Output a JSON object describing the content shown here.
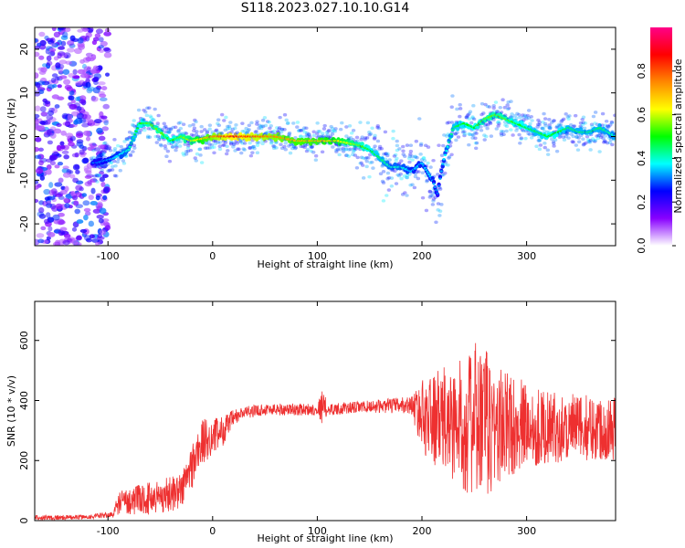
{
  "page": {
    "title": "S118.2023.027.10.10.G14"
  },
  "colors": {
    "snr_line": "#ee3030",
    "axis": "#000000",
    "background": "#ffffff"
  },
  "chart_data": [
    {
      "type": "heatmap",
      "xlabel": "Height of straight line (km)",
      "ylabel": "Frequency (Hz)",
      "xlim": [
        -170,
        385
      ],
      "ylim": [
        -25,
        25
      ],
      "x_ticks": [
        -100,
        0,
        100,
        200,
        300
      ],
      "y_ticks": [
        -20,
        -10,
        0,
        10,
        20
      ],
      "colorbar": {
        "label": "Normalized spectral amplitude",
        "range": [
          0.0,
          1.0
        ],
        "ticks": [
          0.0,
          0.2,
          0.4,
          0.6,
          0.8
        ],
        "tick_labels": [
          "0.0",
          "0.2",
          "0.4",
          "0.6",
          "0.8"
        ],
        "colormap": [
          "#ffffff",
          "#8800ff",
          "#0000ff",
          "#00ffff",
          "#00ff00",
          "#ffff00",
          "#ff8800",
          "#ff0000",
          "#ff0088"
        ]
      },
      "ridge": {
        "x": [
          -110,
          -95,
          -80,
          -70,
          -60,
          -50,
          -40,
          -30,
          -20,
          0,
          20,
          40,
          60,
          80,
          100,
          120,
          140,
          150,
          160,
          170,
          180,
          190,
          200,
          210,
          215,
          220,
          230,
          240,
          250,
          260,
          270,
          280,
          290,
          300,
          310,
          320,
          330,
          340,
          350,
          360,
          370,
          385
        ],
        "y": [
          -6,
          -5,
          -3,
          3,
          3,
          1,
          -1,
          0,
          -1,
          0,
          0,
          0,
          0,
          -1,
          -1,
          -1,
          -2,
          -3,
          -5,
          -7,
          -7,
          -8,
          -6,
          -10,
          -13,
          -6,
          2,
          3,
          2,
          4,
          5,
          4,
          3,
          2,
          1,
          0,
          1,
          2,
          1,
          1,
          2,
          0
        ],
        "amplitude": [
          0.3,
          0.35,
          0.4,
          0.5,
          0.55,
          0.55,
          0.5,
          0.55,
          0.6,
          0.75,
          0.85,
          0.8,
          0.75,
          0.7,
          0.7,
          0.65,
          0.55,
          0.5,
          0.45,
          0.4,
          0.4,
          0.35,
          0.35,
          0.35,
          0.3,
          0.35,
          0.45,
          0.5,
          0.5,
          0.55,
          0.55,
          0.55,
          0.5,
          0.5,
          0.45,
          0.5,
          0.5,
          0.45,
          0.45,
          0.45,
          0.45,
          0.4
        ]
      }
    },
    {
      "type": "line",
      "xlabel": "Height of straight line (km)",
      "ylabel": "SNR (10 * v/v)",
      "xlim": [
        -170,
        385
      ],
      "ylim": [
        0,
        730
      ],
      "x_ticks": [
        -100,
        0,
        100,
        200,
        300
      ],
      "y_ticks": [
        0,
        200,
        400,
        600
      ],
      "series": [
        {
          "values_description_x": [
            -170,
            -150,
            -120,
            -95,
            -90,
            -70,
            -50,
            -30,
            -20,
            -10,
            0,
            10,
            20,
            30,
            50,
            80,
            100,
            105,
            110,
            150,
            190,
            200,
            220,
            240,
            255,
            270,
            290,
            320,
            350,
            385
          ],
          "mean": [
            10,
            10,
            12,
            20,
            60,
            70,
            80,
            100,
            180,
            260,
            280,
            300,
            340,
            360,
            370,
            370,
            370,
            380,
            370,
            380,
            385,
            350,
            330,
            320,
            330,
            310,
            320,
            310,
            310,
            310
          ],
          "spread": [
            8,
            8,
            8,
            10,
            40,
            50,
            60,
            60,
            80,
            80,
            60,
            50,
            30,
            20,
            20,
            20,
            20,
            60,
            20,
            20,
            30,
            120,
            180,
            220,
            280,
            220,
            160,
            120,
            110,
            110
          ]
        }
      ]
    }
  ]
}
